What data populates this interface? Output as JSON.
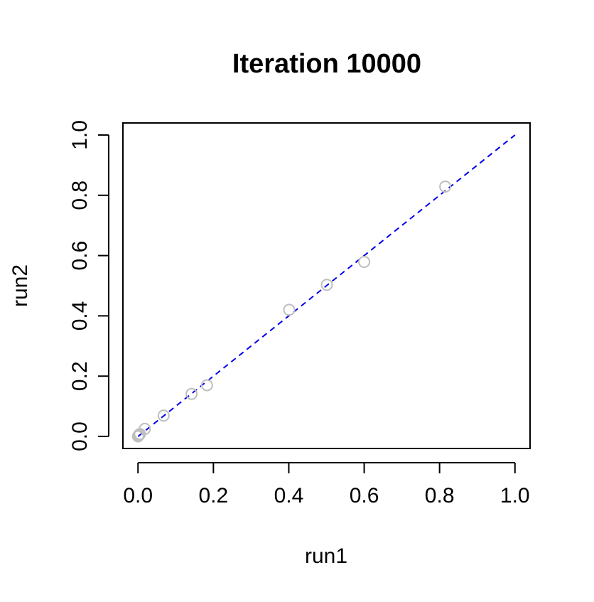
{
  "chart_data": {
    "type": "scatter",
    "title": "Iteration 10000",
    "xlabel": "run1",
    "ylabel": "run2",
    "xlim": [
      -0.04,
      1.04
    ],
    "ylim": [
      -0.04,
      1.04
    ],
    "x_ticks": [
      "0.0",
      "0.2",
      "0.4",
      "0.6",
      "0.8",
      "1.0"
    ],
    "y_ticks": [
      "0.0",
      "0.2",
      "0.4",
      "0.6",
      "0.8",
      "1.0"
    ],
    "grid": false,
    "points": [
      {
        "x": 0.0,
        "y": 0.0
      },
      {
        "x": 0.001,
        "y": 0.002
      },
      {
        "x": 0.002,
        "y": 0.004
      },
      {
        "x": 0.003,
        "y": 0.006
      },
      {
        "x": 0.005,
        "y": 0.008
      },
      {
        "x": 0.018,
        "y": 0.025
      },
      {
        "x": 0.068,
        "y": 0.069
      },
      {
        "x": 0.142,
        "y": 0.141
      },
      {
        "x": 0.183,
        "y": 0.17
      },
      {
        "x": 0.401,
        "y": 0.42
      },
      {
        "x": 0.501,
        "y": 0.503
      },
      {
        "x": 0.6,
        "y": 0.579
      },
      {
        "x": 0.815,
        "y": 0.829
      }
    ],
    "reference_line": {
      "from": [
        0,
        0
      ],
      "to": [
        1,
        1
      ],
      "style": "dashed"
    },
    "colors": {
      "points": "#bebebe",
      "reference_line": "#0000ee",
      "axes": "#000000"
    }
  }
}
